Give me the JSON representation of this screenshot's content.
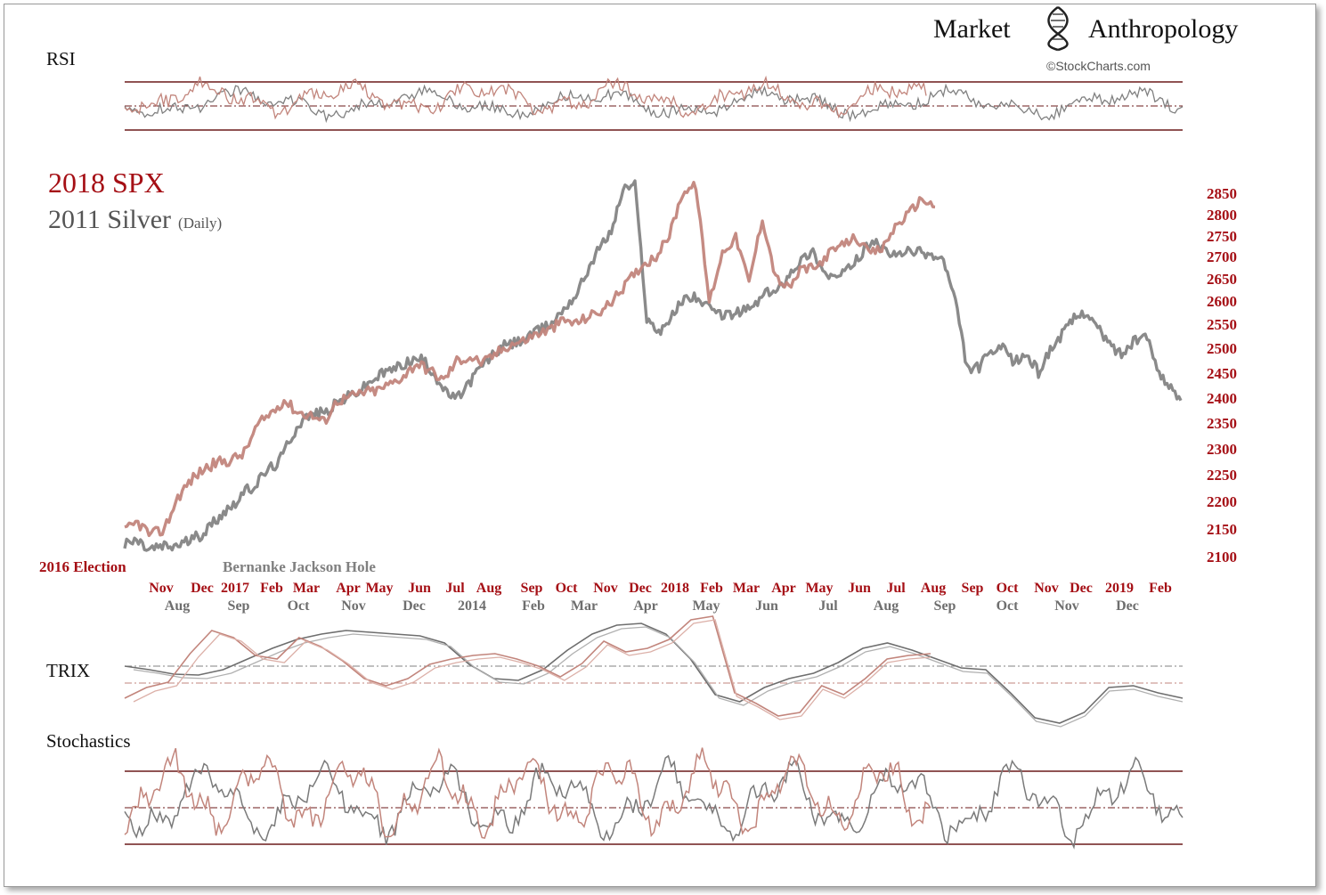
{
  "brand": {
    "name_left": "Market",
    "name_right": "Anthropology",
    "credit": "©StockCharts.com",
    "logo_icon": "dna-helix-icon"
  },
  "colors": {
    "spx": "#c2857c",
    "spx_dark": "#7a1e1e",
    "silver": "#808080",
    "overlap": "#3a0a0a",
    "axis_red": "#a50f15",
    "band": "#6b1a1a"
  },
  "panels": {
    "rsi": {
      "label": "RSI"
    },
    "trix": {
      "label": "TRIX"
    },
    "stochastics": {
      "label": "Stochastics"
    }
  },
  "chart_data": {
    "type": "line",
    "title_line1": "2018 SPX",
    "title_line2": "2011 Silver",
    "title_line2_suffix": "(Daily)",
    "y_axis": {
      "labels": [
        "2850",
        "2800",
        "2750",
        "2700",
        "2650",
        "2600",
        "2550",
        "2500",
        "2450",
        "2400",
        "2350",
        "2300",
        "2250",
        "2200",
        "2150",
        "2100"
      ],
      "values": [
        2850,
        2800,
        2750,
        2700,
        2650,
        2600,
        2550,
        2500,
        2450,
        2400,
        2350,
        2300,
        2250,
        2200,
        2150,
        2100
      ]
    },
    "x_axis_spx": [
      "Nov",
      "Dec",
      "2017",
      "Feb",
      "Mar",
      "Apr",
      "May",
      "Jun",
      "Jul",
      "Aug",
      "Sep",
      "Oct",
      "Nov",
      "Dec",
      "2018",
      "Feb",
      "Mar",
      "Apr",
      "May",
      "Jun",
      "Jul",
      "Aug",
      "Sep",
      "Oct",
      "Nov",
      "Dec",
      "2019",
      "Feb"
    ],
    "x_axis_silver": [
      "Aug",
      "Sep",
      "Oct",
      "Nov",
      "Dec",
      "2014",
      "Feb",
      "Mar",
      "Apr",
      "May",
      "Jun",
      "Jul",
      "Aug",
      "Sep",
      "Oct",
      "Nov",
      "Dec"
    ],
    "annotations": {
      "spx_event": "2016 Election",
      "silver_event": "Bernanke Jackson Hole"
    },
    "series": [
      {
        "name": "2018 SPX",
        "values": [
          2145,
          2162,
          2138,
          2150,
          2208,
          2240,
          2262,
          2274,
          2278,
          2292,
          2345,
          2370,
          2396,
          2372,
          2366,
          2352,
          2395,
          2402,
          2412,
          2415,
          2428,
          2445,
          2470,
          2455,
          2435,
          2475,
          2482,
          2470,
          2490,
          2508,
          2515,
          2530,
          2538,
          2558,
          2552,
          2568,
          2580,
          2610,
          2648,
          2682,
          2700,
          2752,
          2852,
          2868,
          2598,
          2710,
          2746,
          2640,
          2792,
          2652,
          2628,
          2674,
          2672,
          2708,
          2726,
          2748,
          2708,
          2718,
          2772,
          2802,
          2838,
          2818
        ]
      },
      {
        "name": "2011 Silver",
        "values": [
          2120,
          2130,
          2112,
          2118,
          2118,
          2125,
          2134,
          2150,
          2175,
          2192,
          2215,
          2230,
          2258,
          2274,
          2322,
          2358,
          2368,
          2372,
          2392,
          2405,
          2418,
          2438,
          2452,
          2462,
          2474,
          2478,
          2452,
          2412,
          2398,
          2430,
          2462,
          2486,
          2505,
          2512,
          2522,
          2538,
          2552,
          2584,
          2612,
          2668,
          2722,
          2760,
          2860,
          2870,
          2560,
          2535,
          2562,
          2602,
          2612,
          2588,
          2572,
          2570,
          2578,
          2588,
          2618,
          2622,
          2662,
          2692,
          2712,
          2662,
          2652,
          2672,
          2702,
          2742,
          2712,
          2702,
          2712,
          2712,
          2702,
          2692,
          2598,
          2458,
          2462,
          2492,
          2498,
          2472,
          2488,
          2452,
          2498,
          2528,
          2562,
          2578,
          2542,
          2508,
          2488,
          2512,
          2528,
          2462,
          2422,
          2395
        ]
      }
    ]
  }
}
